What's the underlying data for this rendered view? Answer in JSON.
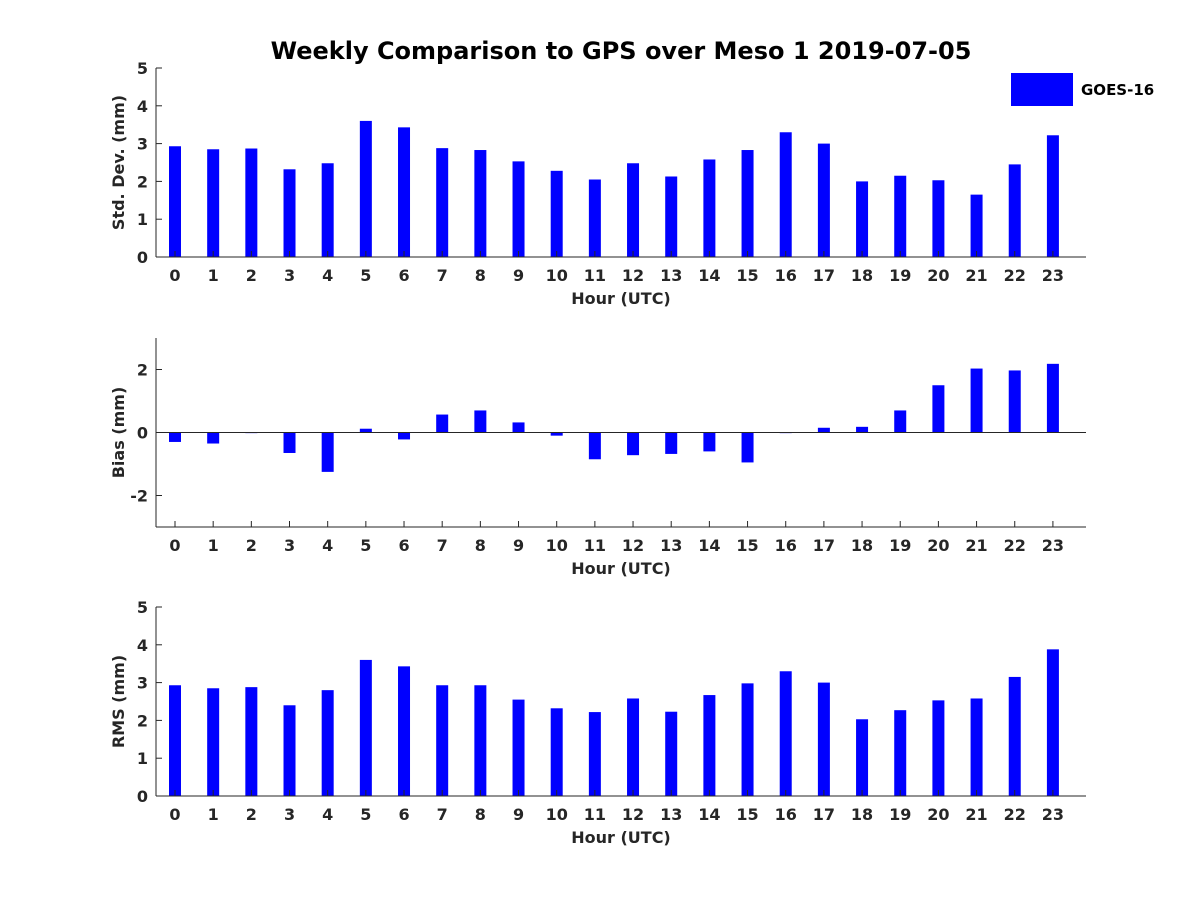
{
  "chart_data": {
    "title": "Weekly Comparison to GPS over Meso 1 2019-07-05",
    "legend": {
      "label": "GOES-16",
      "color": "#0000ff",
      "placement": "top-right"
    },
    "bar_color": "#0000ff",
    "subplots": [
      {
        "type": "bar",
        "xlabel": "Hour (UTC)",
        "ylabel": "Std. Dev. (mm)",
        "ylim": [
          0,
          5
        ],
        "yticks": [
          0,
          1,
          2,
          3,
          4,
          5
        ],
        "categories": [
          "0",
          "1",
          "2",
          "3",
          "4",
          "5",
          "6",
          "7",
          "8",
          "9",
          "10",
          "11",
          "12",
          "13",
          "14",
          "15",
          "16",
          "17",
          "18",
          "19",
          "20",
          "21",
          "22",
          "23"
        ],
        "values": [
          2.93,
          2.85,
          2.87,
          2.32,
          2.48,
          3.6,
          3.43,
          2.88,
          2.83,
          2.53,
          2.28,
          2.05,
          2.48,
          2.13,
          2.58,
          2.83,
          3.3,
          3.0,
          2.0,
          2.15,
          2.03,
          1.65,
          2.45,
          3.22
        ]
      },
      {
        "type": "bar",
        "xlabel": "Hour (UTC)",
        "ylabel": "Bias (mm)",
        "ylim": [
          -3,
          3
        ],
        "yticks": [
          -2,
          0,
          2
        ],
        "ytick_labels": [
          "-2",
          "0",
          "2"
        ],
        "categories": [
          "0",
          "1",
          "2",
          "3",
          "4",
          "5",
          "6",
          "7",
          "8",
          "9",
          "10",
          "11",
          "12",
          "13",
          "14",
          "15",
          "16",
          "17",
          "18",
          "19",
          "20",
          "21",
          "22",
          "23"
        ],
        "values": [
          -0.3,
          -0.35,
          -0.02,
          -0.65,
          -1.25,
          0.12,
          -0.22,
          0.57,
          0.7,
          0.32,
          -0.1,
          -0.85,
          -0.72,
          -0.68,
          -0.6,
          -0.95,
          -0.02,
          0.15,
          0.18,
          0.7,
          1.5,
          2.03,
          1.97,
          2.18
        ]
      },
      {
        "type": "bar",
        "xlabel": "Hour (UTC)",
        "ylabel": "RMS (mm)",
        "ylim": [
          0,
          5
        ],
        "yticks": [
          0,
          1,
          2,
          3,
          4,
          5
        ],
        "categories": [
          "0",
          "1",
          "2",
          "3",
          "4",
          "5",
          "6",
          "7",
          "8",
          "9",
          "10",
          "11",
          "12",
          "13",
          "14",
          "15",
          "16",
          "17",
          "18",
          "19",
          "20",
          "21",
          "22",
          "23"
        ],
        "values": [
          2.93,
          2.85,
          2.88,
          2.4,
          2.8,
          3.6,
          3.43,
          2.93,
          2.93,
          2.55,
          2.32,
          2.22,
          2.58,
          2.23,
          2.67,
          2.98,
          3.3,
          3.0,
          2.03,
          2.27,
          2.53,
          2.58,
          3.15,
          3.88
        ]
      }
    ]
  }
}
